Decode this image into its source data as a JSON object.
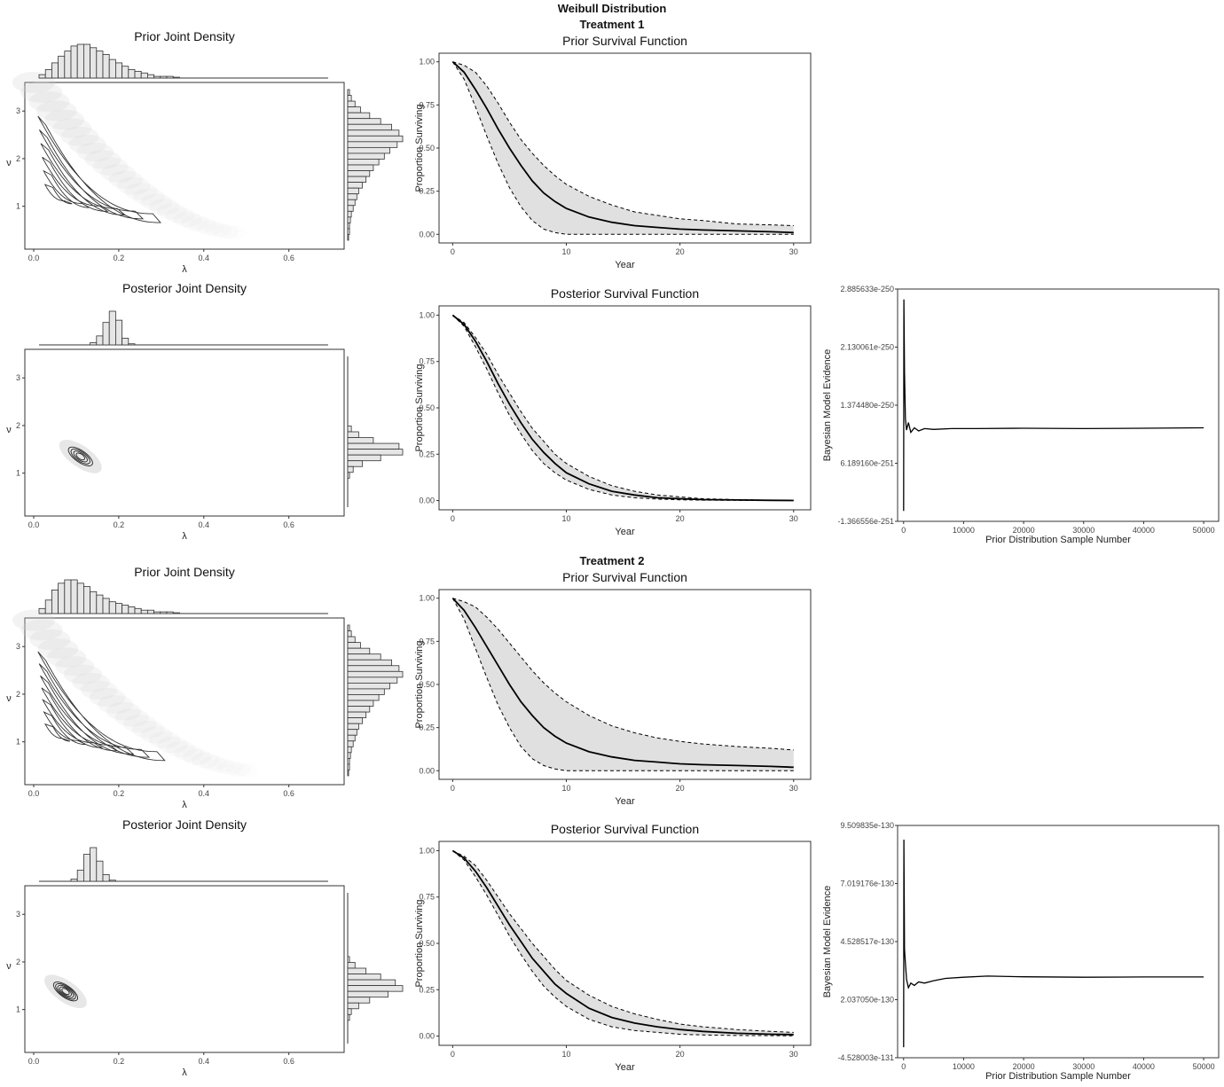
{
  "page": {
    "title": "Weibull Distribution",
    "treatment1": "Treatment 1",
    "treatment2": "Treatment 2"
  },
  "colors": {
    "band_fill": "#e0e0e0",
    "line": "#000000",
    "density_cloud": "#cfcfcf",
    "histogram_fill": "#e6e6e6"
  },
  "chart_data": [
    {
      "id": "t1-prior-joint",
      "type": "heatmap",
      "title": "Prior Joint Density",
      "xlabel": "λ",
      "ylabel": "ν",
      "xticks": [
        "0.0",
        "0.2",
        "0.4",
        "0.6"
      ],
      "yticks": [
        "1",
        "2",
        "3"
      ],
      "xlim": [
        0,
        0.73
      ],
      "ylim": [
        0.1,
        3.6
      ],
      "ridge": {
        "lambda_from": 0.0,
        "lambda_to": 0.27,
        "nu_from": 2.8,
        "nu_to": 0.75,
        "cloud_lambda_end": 0.47,
        "cloud_nu_end": 0.45
      },
      "contours": 6,
      "marginal_lambda": [
        2,
        5,
        9,
        13,
        16,
        19,
        20,
        20,
        18,
        16,
        14,
        11,
        9,
        7,
        5,
        4,
        3,
        2,
        1,
        1,
        1,
        0.5
      ],
      "marginal_nu": [
        1,
        2,
        4,
        7,
        12,
        18,
        24,
        28,
        30,
        27,
        23,
        20,
        17,
        14,
        12,
        10,
        8,
        6,
        5,
        4,
        3,
        2,
        1.5,
        1,
        1,
        0.5
      ]
    },
    {
      "id": "t1-prior-survival",
      "type": "line",
      "title": "Prior Survival Function",
      "xlabel": "Year",
      "ylabel": "Proportion Surviving",
      "xticks": [
        "0",
        "10",
        "20",
        "30"
      ],
      "yticks": [
        "0.00",
        "0.25",
        "0.50",
        "0.75",
        "1.00"
      ],
      "xlim": [
        0,
        30
      ],
      "ylim": [
        0,
        1
      ],
      "x": [
        0,
        1,
        2,
        3,
        4,
        5,
        6,
        7,
        8,
        9,
        10,
        12,
        14,
        16,
        18,
        20,
        22,
        25,
        28,
        30
      ],
      "series": [
        {
          "role": "median",
          "values": [
            1.0,
            0.94,
            0.84,
            0.73,
            0.61,
            0.5,
            0.4,
            0.31,
            0.24,
            0.19,
            0.15,
            0.1,
            0.07,
            0.05,
            0.04,
            0.03,
            0.025,
            0.02,
            0.015,
            0.01
          ]
        },
        {
          "role": "lower",
          "values": [
            1.0,
            0.9,
            0.74,
            0.57,
            0.41,
            0.27,
            0.16,
            0.08,
            0.03,
            0.01,
            0.0,
            0.0,
            0.0,
            0.0,
            0.0,
            0.0,
            0.0,
            0.0,
            0.0,
            0.0
          ]
        },
        {
          "role": "upper",
          "values": [
            1.0,
            0.98,
            0.94,
            0.86,
            0.76,
            0.65,
            0.55,
            0.47,
            0.4,
            0.34,
            0.29,
            0.22,
            0.17,
            0.13,
            0.11,
            0.09,
            0.08,
            0.06,
            0.055,
            0.05
          ]
        }
      ]
    },
    {
      "id": "t1-posterior-joint",
      "type": "heatmap",
      "title": "Posterior Joint Density",
      "xlabel": "λ",
      "ylabel": "ν",
      "xticks": [
        "0.0",
        "0.2",
        "0.4",
        "0.6"
      ],
      "yticks": [
        "1",
        "2",
        "3"
      ],
      "xlim": [
        0,
        0.73
      ],
      "ylim": [
        0.1,
        3.6
      ],
      "center": {
        "lambda": 0.11,
        "nu": 1.35
      },
      "contours": 4,
      "marginal_lambda": [
        0,
        0,
        0,
        0,
        0,
        0,
        0,
        0,
        2,
        8,
        20,
        30,
        22,
        6,
        1,
        0,
        0,
        0,
        0,
        0,
        0,
        0
      ],
      "marginal_nu": [
        0,
        0,
        0,
        0,
        0,
        0,
        0,
        0,
        0,
        0,
        0,
        0,
        2,
        6,
        14,
        28,
        30,
        18,
        8,
        3,
        1,
        0,
        0,
        0,
        0,
        0
      ]
    },
    {
      "id": "t1-posterior-survival",
      "type": "line",
      "title": "Posterior Survival Function",
      "xlabel": "Year",
      "ylabel": "Proportion Surviving",
      "xticks": [
        "0",
        "10",
        "20",
        "30"
      ],
      "yticks": [
        "0.00",
        "0.25",
        "0.50",
        "0.75",
        "1.00"
      ],
      "xlim": [
        0,
        30
      ],
      "ylim": [
        0,
        1
      ],
      "x": [
        0,
        1,
        2,
        3,
        4,
        5,
        6,
        7,
        8,
        9,
        10,
        12,
        14,
        16,
        18,
        20,
        22,
        25,
        28,
        30
      ],
      "series": [
        {
          "role": "median",
          "values": [
            1.0,
            0.95,
            0.86,
            0.75,
            0.63,
            0.52,
            0.42,
            0.33,
            0.26,
            0.2,
            0.15,
            0.09,
            0.05,
            0.03,
            0.015,
            0.01,
            0.005,
            0.003,
            0.001,
            0.0
          ]
        },
        {
          "role": "lower",
          "values": [
            1.0,
            0.94,
            0.83,
            0.71,
            0.58,
            0.46,
            0.36,
            0.27,
            0.2,
            0.15,
            0.11,
            0.06,
            0.03,
            0.015,
            0.008,
            0.004,
            0.002,
            0.001,
            0.0,
            0.0
          ]
        },
        {
          "role": "upper",
          "values": [
            1.0,
            0.96,
            0.88,
            0.79,
            0.68,
            0.58,
            0.48,
            0.39,
            0.32,
            0.25,
            0.2,
            0.13,
            0.08,
            0.05,
            0.03,
            0.02,
            0.01,
            0.005,
            0.002,
            0.001
          ]
        }
      ]
    },
    {
      "id": "t1-evidence",
      "type": "line",
      "xlabel": "Prior Distribution Sample Number",
      "ylabel": "Bayesian Model Evidence",
      "xticks": [
        "0",
        "10000",
        "20000",
        "30000",
        "40000",
        "50000"
      ],
      "yticks": [
        "-1.366556e-251",
        "6.189160e-251",
        "1.374480e-250",
        "2.130061e-250",
        "2.885633e-250"
      ],
      "xlim": [
        -1000,
        52500
      ],
      "ylim": [
        -1.366556e-251,
        2.885633e-250
      ],
      "x": [
        0,
        50,
        150,
        300,
        500,
        800,
        1200,
        1800,
        2500,
        3500,
        5000,
        8000,
        12000,
        20000,
        30000,
        40000,
        50000
      ],
      "values": [
        0,
        2.75e-250,
        1.8e-250,
        1.2e-250,
        1.05e-250,
        1.15e-250,
        1.02e-250,
        1.08e-250,
        1.04e-250,
        1.07e-250,
        1.06e-250,
        1.07e-250,
        1.07e-250,
        1.075e-250,
        1.07e-250,
        1.075e-250,
        1.08e-250
      ]
    },
    {
      "id": "t2-prior-joint",
      "type": "heatmap",
      "title": "Prior Joint Density",
      "xlabel": "λ",
      "ylabel": "ν",
      "xticks": [
        "0.0",
        "0.2",
        "0.4",
        "0.6"
      ],
      "yticks": [
        "1",
        "2",
        "3"
      ],
      "xlim": [
        0,
        0.73
      ],
      "ylim": [
        0.1,
        3.6
      ],
      "ridge": {
        "lambda_from": 0.0,
        "lambda_to": 0.28,
        "nu_from": 2.8,
        "nu_to": 0.7,
        "cloud_lambda_end": 0.5,
        "cloud_nu_end": 0.4
      },
      "contours": 7,
      "marginal_lambda": [
        3,
        8,
        14,
        18,
        20,
        20,
        18,
        16,
        13,
        11,
        9,
        7,
        6,
        5,
        4,
        3,
        2,
        2,
        1,
        1,
        1,
        0.5
      ],
      "marginal_nu": [
        1,
        2,
        4,
        7,
        12,
        18,
        24,
        28,
        30,
        27,
        23,
        20,
        17,
        14,
        12,
        10,
        8,
        6,
        5,
        4,
        3,
        2,
        1.5,
        1,
        1,
        0.5
      ]
    },
    {
      "id": "t2-prior-survival",
      "type": "line",
      "title": "Prior Survival Function",
      "xlabel": "Year",
      "ylabel": "Proportion Surviving",
      "xticks": [
        "0",
        "10",
        "20",
        "30"
      ],
      "yticks": [
        "0.00",
        "0.25",
        "0.50",
        "0.75",
        "1.00"
      ],
      "xlim": [
        0,
        30
      ],
      "ylim": [
        0,
        1
      ],
      "x": [
        0,
        1,
        2,
        3,
        4,
        5,
        6,
        7,
        8,
        9,
        10,
        12,
        14,
        16,
        18,
        20,
        22,
        25,
        28,
        30
      ],
      "series": [
        {
          "role": "median",
          "values": [
            1.0,
            0.93,
            0.83,
            0.72,
            0.61,
            0.5,
            0.4,
            0.32,
            0.25,
            0.2,
            0.16,
            0.11,
            0.08,
            0.06,
            0.05,
            0.04,
            0.035,
            0.03,
            0.025,
            0.02
          ]
        },
        {
          "role": "lower",
          "values": [
            1.0,
            0.88,
            0.71,
            0.54,
            0.38,
            0.25,
            0.14,
            0.07,
            0.03,
            0.01,
            0.0,
            0.0,
            0.0,
            0.0,
            0.0,
            0.0,
            0.0,
            0.0,
            0.0,
            0.0
          ]
        },
        {
          "role": "upper",
          "values": [
            1.0,
            0.98,
            0.95,
            0.89,
            0.82,
            0.74,
            0.66,
            0.58,
            0.51,
            0.45,
            0.4,
            0.32,
            0.26,
            0.22,
            0.19,
            0.17,
            0.155,
            0.14,
            0.13,
            0.12
          ]
        }
      ]
    },
    {
      "id": "t2-posterior-joint",
      "type": "heatmap",
      "title": "Posterior Joint Density",
      "xlabel": "λ",
      "ylabel": "ν",
      "xticks": [
        "0.0",
        "0.2",
        "0.4",
        "0.6"
      ],
      "yticks": [
        "1",
        "2",
        "3"
      ],
      "xlim": [
        0,
        0.73
      ],
      "ylim": [
        0.1,
        3.6
      ],
      "center": {
        "lambda": 0.075,
        "nu": 1.38
      },
      "contours": 5,
      "marginal_lambda": [
        0,
        0,
        0,
        0,
        0,
        2,
        10,
        24,
        30,
        18,
        6,
        1,
        0,
        0,
        0,
        0,
        0,
        0,
        0,
        0,
        0,
        0
      ],
      "marginal_nu": [
        0,
        0,
        0,
        0,
        0,
        0,
        0,
        0,
        0,
        0,
        0,
        1,
        4,
        10,
        18,
        26,
        30,
        22,
        12,
        6,
        2,
        1,
        0,
        0,
        0,
        0
      ]
    },
    {
      "id": "t2-posterior-survival",
      "type": "line",
      "title": "Posterior Survival Function",
      "xlabel": "Year",
      "ylabel": "Proportion Surviving",
      "xticks": [
        "0",
        "10",
        "20",
        "30"
      ],
      "yticks": [
        "0.00",
        "0.25",
        "0.50",
        "0.75",
        "1.00"
      ],
      "xlim": [
        0,
        30
      ],
      "ylim": [
        0,
        1
      ],
      "x": [
        0,
        1,
        2,
        3,
        4,
        5,
        6,
        7,
        8,
        9,
        10,
        12,
        14,
        16,
        18,
        20,
        22,
        25,
        28,
        30
      ],
      "series": [
        {
          "role": "median",
          "values": [
            1.0,
            0.96,
            0.89,
            0.8,
            0.7,
            0.6,
            0.51,
            0.42,
            0.35,
            0.28,
            0.23,
            0.15,
            0.1,
            0.07,
            0.05,
            0.035,
            0.025,
            0.015,
            0.01,
            0.008
          ]
        },
        {
          "role": "lower",
          "values": [
            1.0,
            0.95,
            0.86,
            0.76,
            0.65,
            0.54,
            0.44,
            0.35,
            0.27,
            0.21,
            0.16,
            0.09,
            0.05,
            0.03,
            0.02,
            0.01,
            0.006,
            0.003,
            0.002,
            0.001
          ]
        },
        {
          "role": "upper",
          "values": [
            1.0,
            0.97,
            0.92,
            0.84,
            0.75,
            0.66,
            0.58,
            0.5,
            0.43,
            0.36,
            0.3,
            0.22,
            0.16,
            0.12,
            0.09,
            0.065,
            0.05,
            0.035,
            0.025,
            0.02
          ]
        }
      ]
    },
    {
      "id": "t2-evidence",
      "type": "line",
      "xlabel": "Prior Distribution Sample Number",
      "ylabel": "Bayesian Model Evidence",
      "xticks": [
        "0",
        "10000",
        "20000",
        "30000",
        "40000",
        "50000"
      ],
      "yticks": [
        "-4.528003e-131",
        "2.037050e-130",
        "4.528517e-130",
        "7.019176e-130",
        "9.509835e-130"
      ],
      "xlim": [
        -1000,
        52500
      ],
      "ylim": [
        -4.528003e-131,
        9.509835e-130
      ],
      "x": [
        0,
        50,
        150,
        300,
        500,
        800,
        1200,
        1800,
        2500,
        3500,
        5000,
        7000,
        10000,
        14000,
        20000,
        30000,
        40000,
        50000
      ],
      "values": [
        0,
        8.9e-130,
        4.2e-130,
        3.6e-130,
        2.9e-130,
        2.55e-130,
        2.75e-130,
        2.65e-130,
        2.8e-130,
        2.75e-130,
        2.85e-130,
        2.95e-130,
        3e-130,
        3.05e-130,
        3.02e-130,
        3e-130,
        3.01e-130,
        3.01e-130
      ]
    }
  ]
}
